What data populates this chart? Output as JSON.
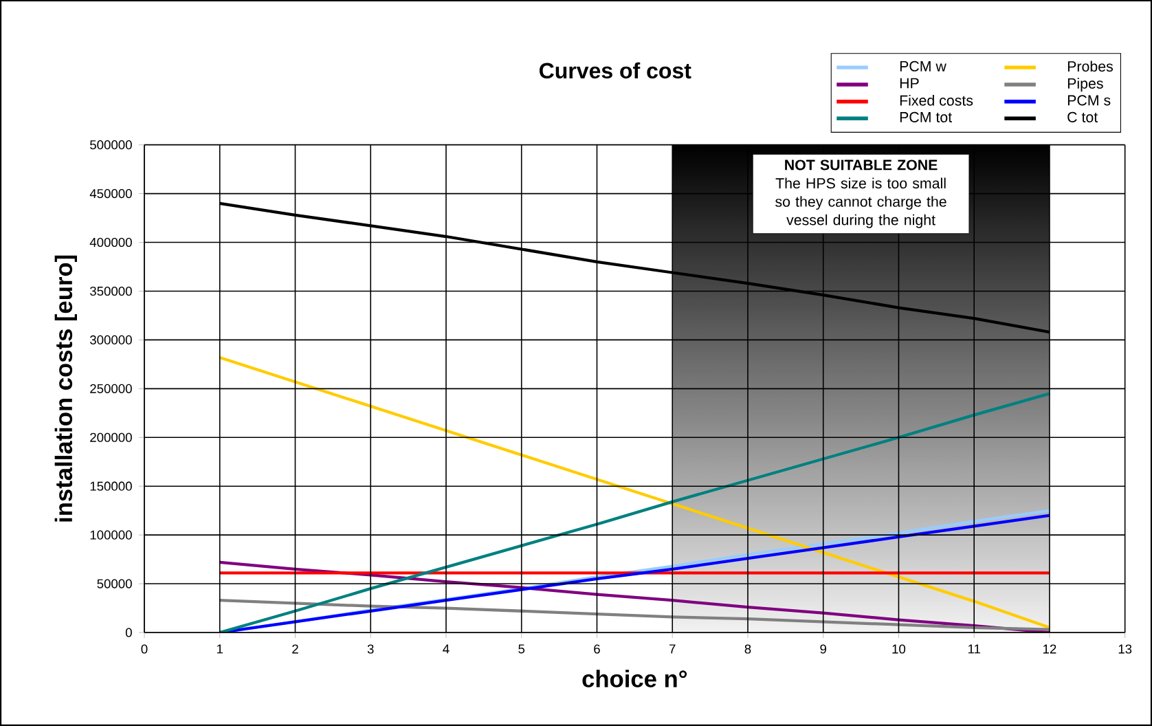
{
  "chart_data": {
    "type": "line",
    "title": "Curves of cost",
    "xlabel": "choice n°",
    "ylabel": "installation costs [euro]",
    "x": [
      1,
      2,
      3,
      4,
      5,
      6,
      7,
      8,
      9,
      10,
      11,
      12
    ],
    "xlim": [
      0,
      13
    ],
    "xticks": [
      0,
      1,
      2,
      3,
      4,
      5,
      6,
      7,
      8,
      9,
      10,
      11,
      12,
      13
    ],
    "ylim": [
      0,
      500000
    ],
    "yticks": [
      0,
      50000,
      100000,
      150000,
      200000,
      250000,
      300000,
      350000,
      400000,
      450000,
      500000
    ],
    "grid": true,
    "legend": "top right",
    "marker": "none",
    "line_style": "solid",
    "series": [
      {
        "name": "PCM w",
        "color": "#99ccff",
        "values": [
          0,
          11000,
          23000,
          34000,
          45000,
          57000,
          68000,
          80000,
          91000,
          102000,
          114000,
          125000
        ]
      },
      {
        "name": "Probes",
        "color": "#ffcc00",
        "values": [
          282000,
          257000,
          232000,
          207000,
          182000,
          157000,
          132000,
          107000,
          82000,
          57000,
          32000,
          5000
        ]
      },
      {
        "name": "HP",
        "color": "#800080",
        "values": [
          72000,
          65000,
          59000,
          52000,
          46000,
          39000,
          33000,
          26000,
          20000,
          13000,
          7000,
          0
        ]
      },
      {
        "name": "Pipes",
        "color": "#808080",
        "values": [
          33000,
          30000,
          27000,
          25000,
          22000,
          19000,
          16000,
          14000,
          11000,
          8000,
          5000,
          3000
        ]
      },
      {
        "name": "Fixed costs",
        "color": "#ff0000",
        "values": [
          61000,
          61000,
          61000,
          61000,
          61000,
          61000,
          61000,
          61000,
          61000,
          61000,
          61000,
          61000
        ]
      },
      {
        "name": "PCM s",
        "color": "#0000ff",
        "values": [
          0,
          11000,
          22000,
          33000,
          44000,
          55000,
          65000,
          76000,
          87000,
          98000,
          109000,
          120000
        ]
      },
      {
        "name": "PCM tot",
        "color": "#008080",
        "values": [
          0,
          22000,
          45000,
          67000,
          89000,
          111000,
          134000,
          156000,
          178000,
          200000,
          223000,
          245000
        ]
      },
      {
        "name": "C tot",
        "color": "#000000",
        "values": [
          440000,
          428000,
          417000,
          406000,
          393000,
          380000,
          369000,
          358000,
          346000,
          333000,
          322000,
          308000
        ]
      }
    ],
    "bands": [
      {
        "axis": "x",
        "from": 7,
        "to": 12,
        "color": "#f2f2f2",
        "label": "**NOT SUITABLE ZONE** The HPS size is too small so they cannot charge the vessel during the night"
      }
    ]
  }
}
